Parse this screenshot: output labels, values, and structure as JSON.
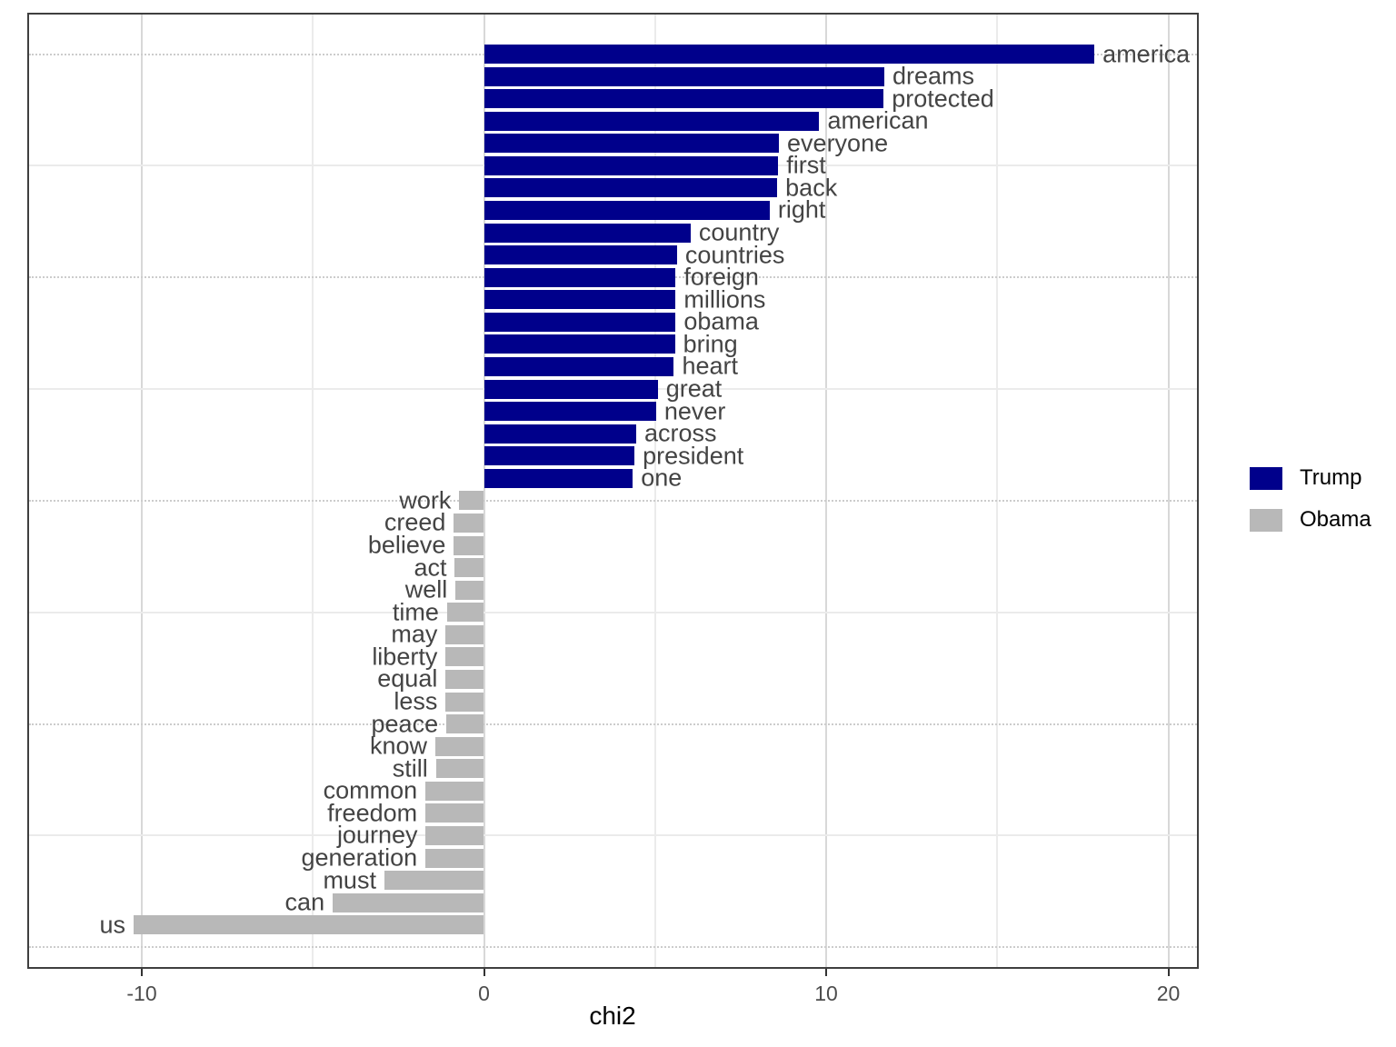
{
  "chart_data": {
    "type": "bar",
    "orientation": "horizontal",
    "title": "",
    "xlabel": "chi2",
    "ylabel": "",
    "xlim": [
      -13.3,
      20.9
    ],
    "x_major_ticks": [
      -10,
      0,
      10,
      20
    ],
    "x_minor_ticks": [
      -5,
      5,
      15
    ],
    "x_tick_labels": [
      "-10",
      "0",
      "10",
      "20"
    ],
    "y_major_breaks": [
      40,
      30,
      20,
      10,
      0
    ],
    "y_minor_breaks": [
      35,
      25,
      15,
      5
    ],
    "grid": true,
    "legend": {
      "position": "right",
      "entries": [
        {
          "label": "Trump",
          "color": "#00008B"
        },
        {
          "label": "Obama",
          "color": "#B8B8B8"
        }
      ]
    },
    "series": [
      {
        "name": "Trump",
        "color": "#00008B",
        "points": [
          {
            "word": "america",
            "chi2": 17.84
          },
          {
            "word": "dreams",
            "chi2": 11.7
          },
          {
            "word": "protected",
            "chi2": 11.68
          },
          {
            "word": "american",
            "chi2": 9.8
          },
          {
            "word": "everyone",
            "chi2": 8.62
          },
          {
            "word": "first",
            "chi2": 8.6
          },
          {
            "word": "back",
            "chi2": 8.57
          },
          {
            "word": "right",
            "chi2": 8.35
          },
          {
            "word": "country",
            "chi2": 6.04
          },
          {
            "word": "countries",
            "chi2": 5.64
          },
          {
            "word": "foreign",
            "chi2": 5.6
          },
          {
            "word": "millions",
            "chi2": 5.6
          },
          {
            "word": "obama",
            "chi2": 5.6
          },
          {
            "word": "bring",
            "chi2": 5.58
          },
          {
            "word": "heart",
            "chi2": 5.55
          },
          {
            "word": "great",
            "chi2": 5.08
          },
          {
            "word": "never",
            "chi2": 5.03
          },
          {
            "word": "across",
            "chi2": 4.45
          },
          {
            "word": "president",
            "chi2": 4.4
          },
          {
            "word": "one",
            "chi2": 4.35
          }
        ]
      },
      {
        "name": "Obama",
        "color": "#B8B8B8",
        "points": [
          {
            "word": "work",
            "chi2": -0.72
          },
          {
            "word": "creed",
            "chi2": -0.88
          },
          {
            "word": "believe",
            "chi2": -0.88
          },
          {
            "word": "act",
            "chi2": -0.85
          },
          {
            "word": "well",
            "chi2": -0.83
          },
          {
            "word": "time",
            "chi2": -1.08
          },
          {
            "word": "may",
            "chi2": -1.12
          },
          {
            "word": "liberty",
            "chi2": -1.12
          },
          {
            "word": "equal",
            "chi2": -1.12
          },
          {
            "word": "less",
            "chi2": -1.12
          },
          {
            "word": "peace",
            "chi2": -1.1
          },
          {
            "word": "know",
            "chi2": -1.42
          },
          {
            "word": "still",
            "chi2": -1.4
          },
          {
            "word": "common",
            "chi2": -1.71
          },
          {
            "word": "freedom",
            "chi2": -1.71
          },
          {
            "word": "journey",
            "chi2": -1.7
          },
          {
            "word": "generation",
            "chi2": -1.71
          },
          {
            "word": "must",
            "chi2": -2.91
          },
          {
            "word": "can",
            "chi2": -4.42
          },
          {
            "word": "us",
            "chi2": -10.24
          }
        ]
      }
    ]
  }
}
